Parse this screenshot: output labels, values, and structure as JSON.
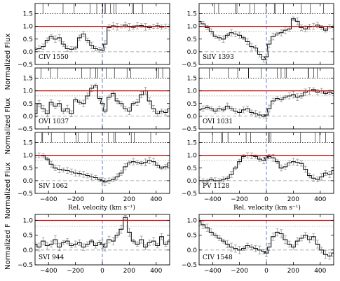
{
  "chart_data": {
    "type": "line",
    "xlabel": "Rel. velocity  (km s⁻¹)",
    "ylabel_row1": "Normalized Flux",
    "ylabel_row2": "Normalized Flux",
    "ylabel_row3": "Normalized Flux",
    "ylabel_row4": "Normalized F",
    "xlim": [
      -500,
      500
    ],
    "xticks": [
      -400,
      -200,
      0,
      200,
      400
    ],
    "xtick_labels": [
      "−400",
      "−200",
      "0",
      "200",
      "400"
    ],
    "yticks": [
      -0.5,
      0.0,
      0.5,
      1.0,
      1.5
    ],
    "ytick_labels": [
      "−0.5",
      "0.0",
      "0.5",
      "1.0",
      "1.5"
    ],
    "ytick_labels_bottom": [
      "−0.5",
      "0.0",
      "0.5",
      "1.0"
    ],
    "colors": {
      "continuum": "#cc0000",
      "spectrum": "#111111",
      "errors": "#9a9a9a",
      "zero_marker": "#6a8fd8",
      "guides": "#9a9a9a"
    },
    "panels": [
      {
        "ion": "CIV 1550",
        "ylim": [
          -0.5,
          1.9
        ],
        "xaxis_labels": false,
        "x": [
          -500,
          -470,
          -440,
          -410,
          -380,
          -350,
          -320,
          -290,
          -260,
          -230,
          -200,
          -170,
          -140,
          -110,
          -80,
          -50,
          -20,
          0,
          20,
          50,
          80,
          110,
          140,
          170,
          200,
          230,
          260,
          290,
          320,
          350,
          380,
          410,
          440,
          470,
          500
        ],
        "y": [
          0.1,
          0.12,
          0.2,
          0.45,
          0.6,
          0.5,
          0.55,
          0.3,
          0.12,
          0.1,
          0.15,
          0.55,
          0.7,
          0.45,
          0.25,
          0.12,
          0.08,
          0.06,
          0.3,
          0.95,
          1.02,
          0.98,
          1.0,
          1.05,
          0.98,
          0.96,
          1.02,
          1.03,
          0.98,
          0.95,
          1.0,
          1.02,
          0.97,
          1.0,
          0.98
        ]
      },
      {
        "ion": "SiIV 1393",
        "ylim": [
          -0.5,
          1.9
        ],
        "xaxis_labels": false,
        "x": [
          -500,
          -470,
          -440,
          -410,
          -380,
          -350,
          -320,
          -290,
          -260,
          -230,
          -200,
          -170,
          -140,
          -110,
          -80,
          -50,
          -20,
          0,
          20,
          50,
          80,
          110,
          140,
          170,
          200,
          230,
          260,
          290,
          320,
          350,
          380,
          410,
          440,
          470,
          500
        ],
        "y": [
          1.2,
          1.1,
          0.95,
          0.8,
          0.6,
          0.55,
          0.5,
          0.65,
          0.75,
          0.7,
          0.65,
          0.55,
          0.4,
          0.2,
          0.15,
          -0.1,
          -0.3,
          -0.2,
          0.3,
          0.6,
          0.7,
          0.75,
          0.85,
          0.9,
          1.3,
          1.2,
          0.95,
          0.9,
          0.98,
          1.0,
          1.05,
          0.95,
          0.85,
          1.0,
          0.95
        ]
      },
      {
        "ion": "OVI 1037",
        "ylim": [
          -0.5,
          1.9
        ],
        "xaxis_labels": false,
        "x": [
          -500,
          -470,
          -440,
          -410,
          -380,
          -350,
          -320,
          -290,
          -260,
          -230,
          -200,
          -170,
          -140,
          -110,
          -80,
          -50,
          -20,
          0,
          20,
          50,
          80,
          110,
          140,
          170,
          200,
          230,
          260,
          290,
          320,
          350,
          380,
          410,
          440,
          470,
          500
        ],
        "y": [
          0.1,
          0.5,
          0.3,
          0.1,
          0.55,
          0.4,
          0.5,
          0.2,
          0.3,
          0.1,
          0.65,
          0.55,
          0.5,
          0.8,
          1.1,
          1.2,
          0.7,
          0.5,
          0.2,
          0.75,
          0.9,
          0.6,
          0.5,
          0.3,
          0.2,
          0.5,
          0.55,
          0.85,
          1.0,
          0.6,
          0.3,
          0.1,
          0.2,
          0.15,
          0.3
        ]
      },
      {
        "ion": "OVI 1031",
        "ylim": [
          -0.5,
          1.9
        ],
        "xaxis_labels": false,
        "x": [
          -500,
          -470,
          -440,
          -410,
          -380,
          -350,
          -320,
          -290,
          -260,
          -230,
          -200,
          -170,
          -140,
          -110,
          -80,
          -50,
          -20,
          0,
          20,
          50,
          80,
          110,
          140,
          170,
          200,
          230,
          260,
          290,
          320,
          350,
          380,
          410,
          440,
          470,
          500
        ],
        "y": [
          0.25,
          0.3,
          0.35,
          0.3,
          0.2,
          0.3,
          0.25,
          0.4,
          0.3,
          0.2,
          0.15,
          0.25,
          0.3,
          0.15,
          0.1,
          0.05,
          0.0,
          0.05,
          0.3,
          0.6,
          0.7,
          0.65,
          0.75,
          0.8,
          0.85,
          0.75,
          0.8,
          0.95,
          1.0,
          1.05,
          0.95,
          1.0,
          0.9,
          0.95,
          0.9
        ]
      },
      {
        "ion": "SIV 1062",
        "ylim": [
          -0.5,
          1.9
        ],
        "xaxis_labels": false,
        "x": [
          -500,
          -470,
          -440,
          -410,
          -380,
          -350,
          -320,
          -290,
          -260,
          -230,
          -200,
          -170,
          -140,
          -110,
          -80,
          -50,
          -20,
          0,
          20,
          50,
          80,
          110,
          140,
          170,
          200,
          230,
          260,
          290,
          320,
          350,
          380,
          410,
          440,
          470,
          500
        ],
        "y": [
          1.0,
          1.0,
          0.98,
          0.85,
          0.65,
          0.5,
          0.45,
          0.42,
          0.4,
          0.35,
          0.3,
          0.28,
          0.25,
          0.2,
          0.15,
          0.12,
          0.05,
          0.0,
          -0.05,
          0.0,
          0.05,
          0.15,
          0.3,
          0.55,
          0.7,
          0.75,
          0.72,
          0.68,
          0.72,
          0.8,
          0.75,
          0.6,
          0.5,
          0.55,
          0.7
        ]
      },
      {
        "ion": "PV 1128",
        "ylim": [
          -0.5,
          1.9
        ],
        "xaxis_labels": false,
        "x": [
          -500,
          -470,
          -440,
          -410,
          -380,
          -350,
          -320,
          -290,
          -260,
          -230,
          -200,
          -170,
          -140,
          -110,
          -80,
          -50,
          -20,
          0,
          20,
          50,
          80,
          110,
          140,
          170,
          200,
          230,
          260,
          290,
          320,
          350,
          380,
          410,
          440,
          470,
          500
        ],
        "y": [
          0.0,
          0.0,
          0.0,
          0.05,
          0.0,
          0.0,
          0.05,
          0.1,
          0.25,
          0.5,
          0.75,
          0.95,
          1.0,
          0.98,
          0.95,
          0.85,
          0.8,
          0.9,
          0.95,
          0.9,
          0.75,
          0.5,
          0.55,
          0.7,
          0.75,
          0.72,
          0.68,
          0.45,
          0.2,
          0.1,
          0.05,
          0.15,
          0.3,
          0.25,
          0.4
        ]
      },
      {
        "ion": "SVI 944",
        "ylim": [
          -0.5,
          1.2
        ],
        "xaxis_labels": true,
        "x": [
          -500,
          -470,
          -440,
          -410,
          -380,
          -350,
          -320,
          -290,
          -260,
          -230,
          -200,
          -170,
          -140,
          -110,
          -80,
          -50,
          -20,
          0,
          20,
          50,
          80,
          110,
          140,
          170,
          200,
          230,
          260,
          290,
          320,
          350,
          380,
          410,
          440,
          470,
          500
        ],
        "y": [
          0.2,
          0.1,
          0.3,
          0.15,
          0.2,
          0.35,
          0.1,
          0.25,
          0.3,
          0.15,
          0.2,
          0.25,
          0.1,
          0.2,
          0.3,
          0.15,
          0.25,
          0.2,
          0.1,
          0.35,
          0.3,
          0.5,
          0.7,
          1.1,
          0.6,
          0.3,
          0.2,
          0.35,
          0.1,
          0.25,
          0.3,
          0.15,
          0.45,
          0.2,
          0.3
        ]
      },
      {
        "ion": "CIV 1548",
        "ylim": [
          -0.5,
          1.2
        ],
        "xaxis_labels": true,
        "x": [
          -500,
          -470,
          -440,
          -410,
          -380,
          -350,
          -320,
          -290,
          -260,
          -230,
          -200,
          -170,
          -140,
          -110,
          -80,
          -50,
          -20,
          0,
          20,
          50,
          80,
          110,
          140,
          170,
          200,
          230,
          260,
          290,
          320,
          350,
          380,
          410,
          440,
          470,
          500
        ],
        "y": [
          0.95,
          0.85,
          0.75,
          0.6,
          0.5,
          0.4,
          0.3,
          0.2,
          0.1,
          0.05,
          0.0,
          0.05,
          0.15,
          0.1,
          0.05,
          0.0,
          -0.05,
          -0.1,
          0.1,
          0.45,
          0.6,
          0.55,
          0.35,
          0.2,
          0.1,
          0.3,
          0.4,
          0.5,
          0.35,
          0.45,
          0.2,
          0.0,
          -0.15,
          -0.2,
          -0.1
        ]
      }
    ]
  }
}
